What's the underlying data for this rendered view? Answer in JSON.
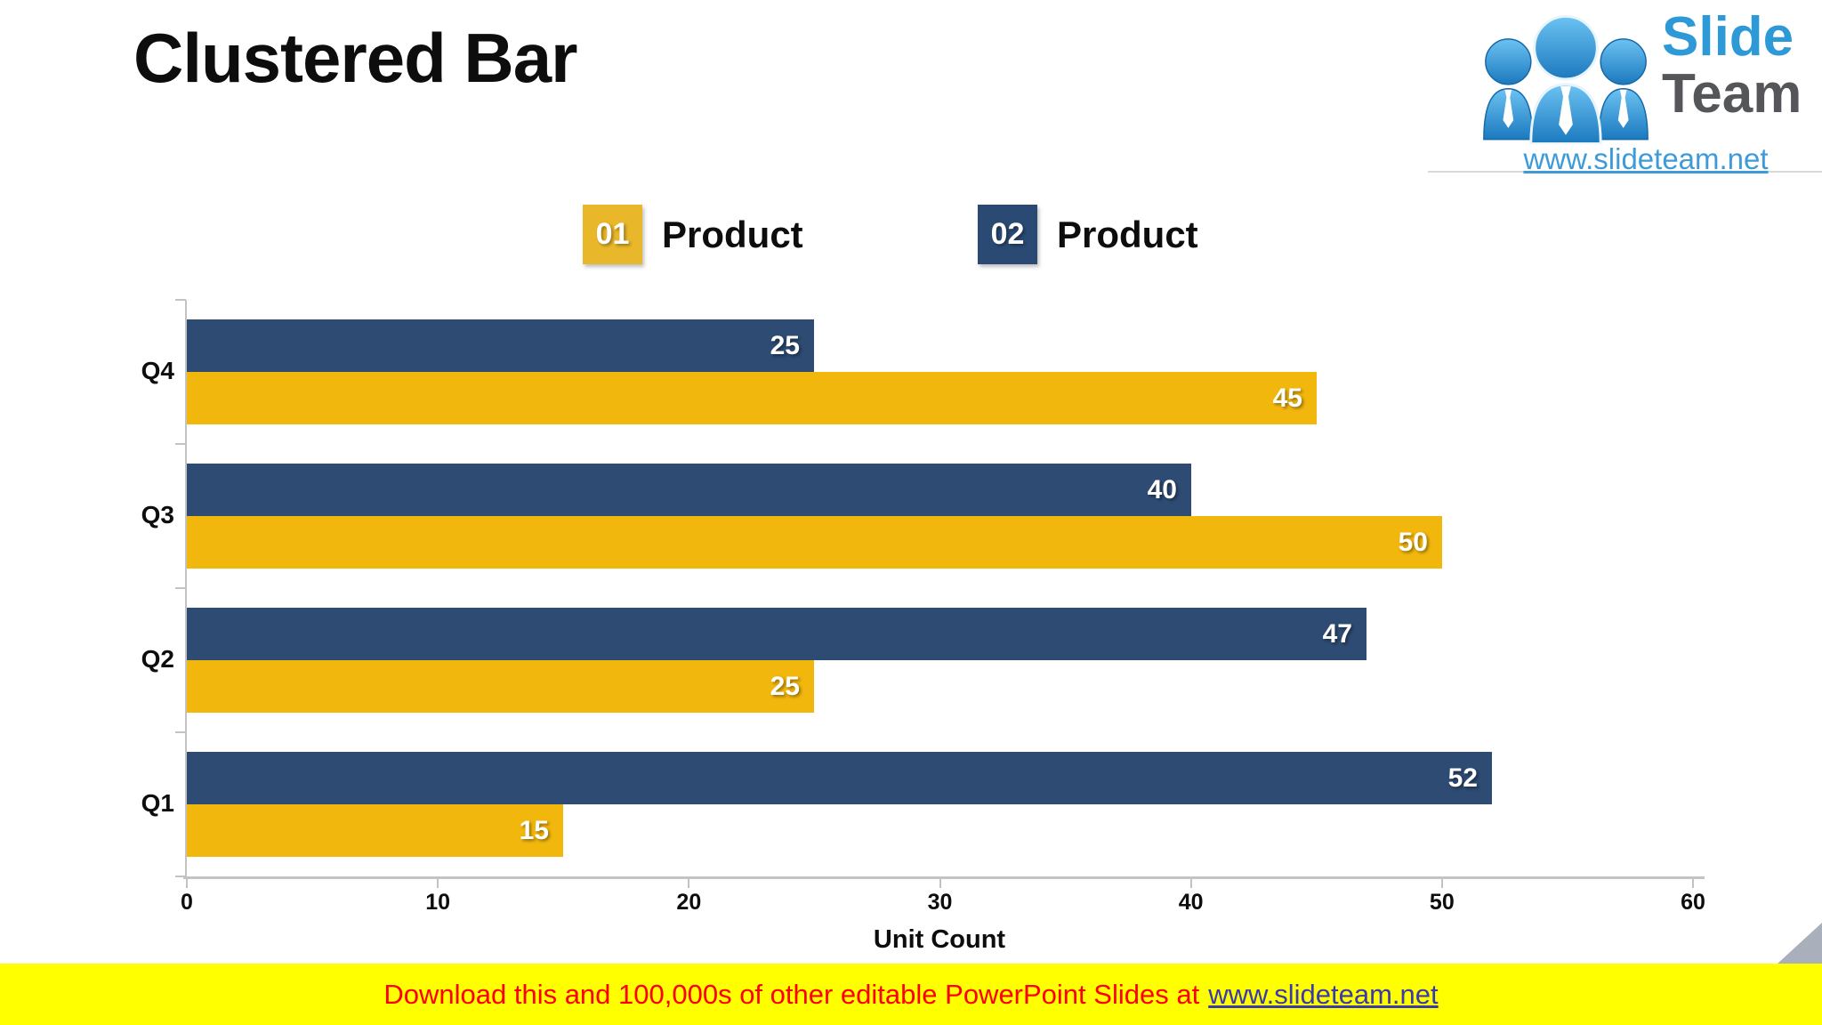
{
  "title": "Clustered Bar",
  "logo": {
    "brand_line1": "Slide",
    "brand_line2": "Team",
    "url": "www.slideteam.net"
  },
  "legend": {
    "items": [
      {
        "badge": "01",
        "label": "Product",
        "color": "#e9b72a"
      },
      {
        "badge": "02",
        "label": "Product",
        "color": "#2a4a74"
      }
    ]
  },
  "chart_data": {
    "type": "bar",
    "orientation": "horizontal",
    "title": "",
    "categories": [
      "Q4",
      "Q3",
      "Q2",
      "Q1"
    ],
    "series": [
      {
        "name": "01 Product",
        "color": "#f2b70d",
        "values": [
          45,
          50,
          25,
          15
        ]
      },
      {
        "name": "02 Product",
        "color": "#2d4b73",
        "values": [
          25,
          40,
          47,
          52
        ]
      }
    ],
    "bar_order_top_to_bottom_in_group": [
      "02 Product",
      "01 Product"
    ],
    "xlabel": "Unit Count",
    "ylabel": "",
    "xlim": [
      0,
      60
    ],
    "xticks": [
      0,
      10,
      20,
      30,
      40,
      50,
      60
    ],
    "grid": false,
    "legend_position": "top",
    "value_labels": "inside-end-white-bold"
  },
  "banner": {
    "text": "Download this and 100,000s of other editable PowerPoint Slides at",
    "link": "www.slideteam.net",
    "bg_color": "#ffff00",
    "text_color": "#ff0000",
    "link_color": "#3a3aad"
  },
  "colors": {
    "bar_blue": "#2d4b73",
    "bar_yellow": "#f2b70d",
    "axis_gray": "#c3c3c3",
    "corner_triangle": "#a9afbb",
    "logo_blue": "#2d9ad7",
    "logo_gray": "#55565a"
  }
}
